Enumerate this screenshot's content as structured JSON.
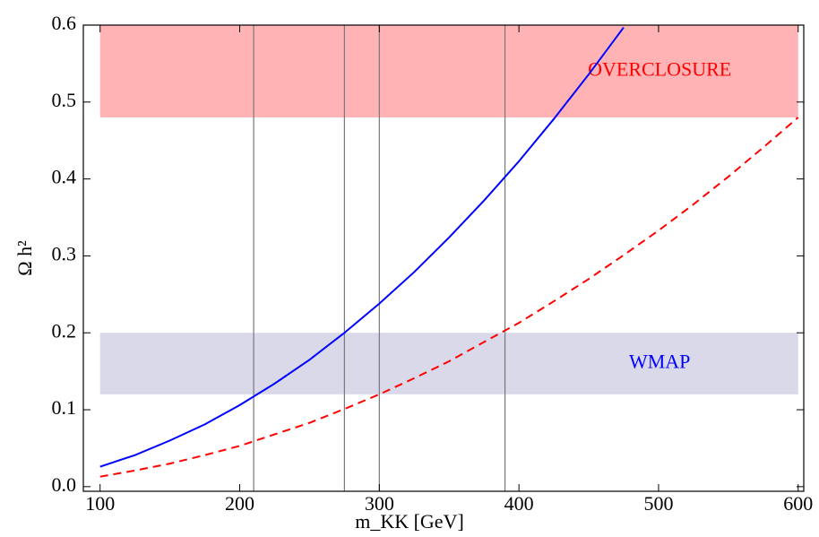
{
  "chart_data": {
    "type": "line",
    "xlabel": "m_KK [GeV]",
    "ylabel": "Ω h²",
    "xlim": [
      88,
      604
    ],
    "ylim": [
      -0.006,
      0.6
    ],
    "xticks": [
      100,
      200,
      300,
      400,
      500,
      600
    ],
    "yticks": [
      {
        "value": 0,
        "label": "0.0"
      },
      0.1,
      0.2,
      0.3,
      0.4,
      0.5,
      0.6
    ],
    "bands": [
      {
        "label": "OVERCLOSURE",
        "xmin": 100,
        "xmax": 600,
        "ymin": 0.48,
        "ymax": 0.6,
        "color": "#ffb3b5",
        "label_color": "#ff0000"
      },
      {
        "label": "WMAP",
        "xmin": 100,
        "xmax": 600,
        "ymin": 0.12,
        "ymax": 0.2,
        "color": "#d9d9ea",
        "label_color": "#0000ff"
      }
    ],
    "vlines": [
      210,
      275,
      300,
      390
    ],
    "vline_color": "#777777",
    "series": [
      {
        "color": "#0000ff",
        "dash": false,
        "x": [
          100,
          125,
          150,
          175,
          200,
          225,
          250,
          275,
          300,
          325,
          350,
          375,
          400,
          425,
          450,
          475
        ],
        "values": [
          0.026,
          0.041,
          0.06,
          0.081,
          0.106,
          0.134,
          0.165,
          0.2,
          0.238,
          0.279,
          0.324,
          0.372,
          0.423,
          0.478,
          0.536,
          0.597
        ]
      },
      {
        "color": "#ff0000",
        "dash": true,
        "x": [
          100,
          125,
          150,
          175,
          200,
          225,
          250,
          275,
          300,
          325,
          350,
          375,
          400,
          425,
          450,
          475,
          500,
          525,
          550,
          575,
          600
        ],
        "values": [
          0.013,
          0.021,
          0.03,
          0.041,
          0.053,
          0.068,
          0.083,
          0.101,
          0.12,
          0.141,
          0.163,
          0.188,
          0.213,
          0.241,
          0.27,
          0.301,
          0.333,
          0.367,
          0.403,
          0.441,
          0.48
        ]
      }
    ]
  }
}
